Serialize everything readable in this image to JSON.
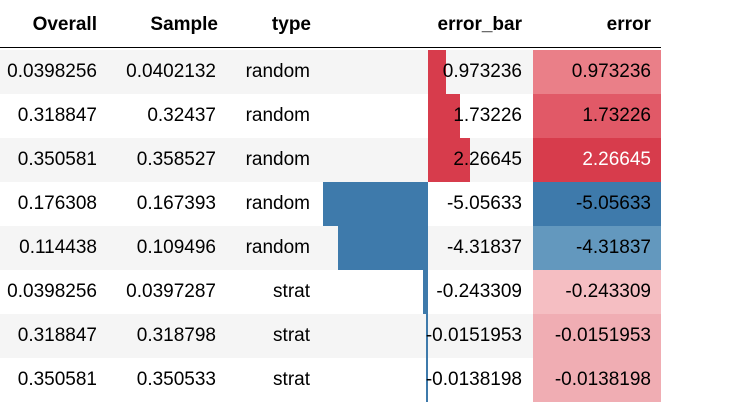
{
  "columns": {
    "overall": "Overall",
    "sample": "Sample",
    "type": "type",
    "error_bar": "error_bar",
    "error": "error"
  },
  "colors": {
    "positive_bar": "#d73c4c",
    "negative_bar": "#3e7aab"
  },
  "rows": [
    {
      "overall": "0.0398256",
      "sample": "0.0402132",
      "type": "random",
      "error_bar": "0.973236",
      "error": "0.973236",
      "value": 0.973236,
      "error_bg": "#ea7f88",
      "error_fg": "#000000"
    },
    {
      "overall": "0.318847",
      "sample": "0.32437",
      "type": "random",
      "error_bar": "1.73226",
      "error": "1.73226",
      "value": 1.73226,
      "error_bg": "#e15967",
      "error_fg": "#000000"
    },
    {
      "overall": "0.350581",
      "sample": "0.358527",
      "type": "random",
      "error_bar": "2.26645",
      "error": "2.26645",
      "value": 2.26645,
      "error_bg": "#d73c4c",
      "error_fg": "#ffffff"
    },
    {
      "overall": "0.176308",
      "sample": "0.167393",
      "type": "random",
      "error_bar": "-5.05633",
      "error": "-5.05633",
      "value": -5.05633,
      "error_bg": "#3e7aab",
      "error_fg": "#000000"
    },
    {
      "overall": "0.114438",
      "sample": "0.109496",
      "type": "random",
      "error_bar": "-4.31837",
      "error": "-4.31837",
      "value": -4.31837,
      "error_bg": "#6398be",
      "error_fg": "#000000"
    },
    {
      "overall": "0.0398256",
      "sample": "0.0397287",
      "type": "strat",
      "error_bar": "-0.243309",
      "error": "-0.243309",
      "value": -0.243309,
      "error_bg": "#f5bec2",
      "error_fg": "#000000"
    },
    {
      "overall": "0.318847",
      "sample": "0.318798",
      "type": "strat",
      "error_bar": "-0.0151953",
      "error": "-0.0151953",
      "value": -0.0151953,
      "error_bg": "#f0adb3",
      "error_fg": "#000000"
    },
    {
      "overall": "0.350581",
      "sample": "0.350533",
      "type": "strat",
      "error_bar": "-0.0138198",
      "error": "-0.0138198",
      "value": -0.0138198,
      "error_bg": "#f0adb3",
      "error_fg": "#000000"
    }
  ]
}
